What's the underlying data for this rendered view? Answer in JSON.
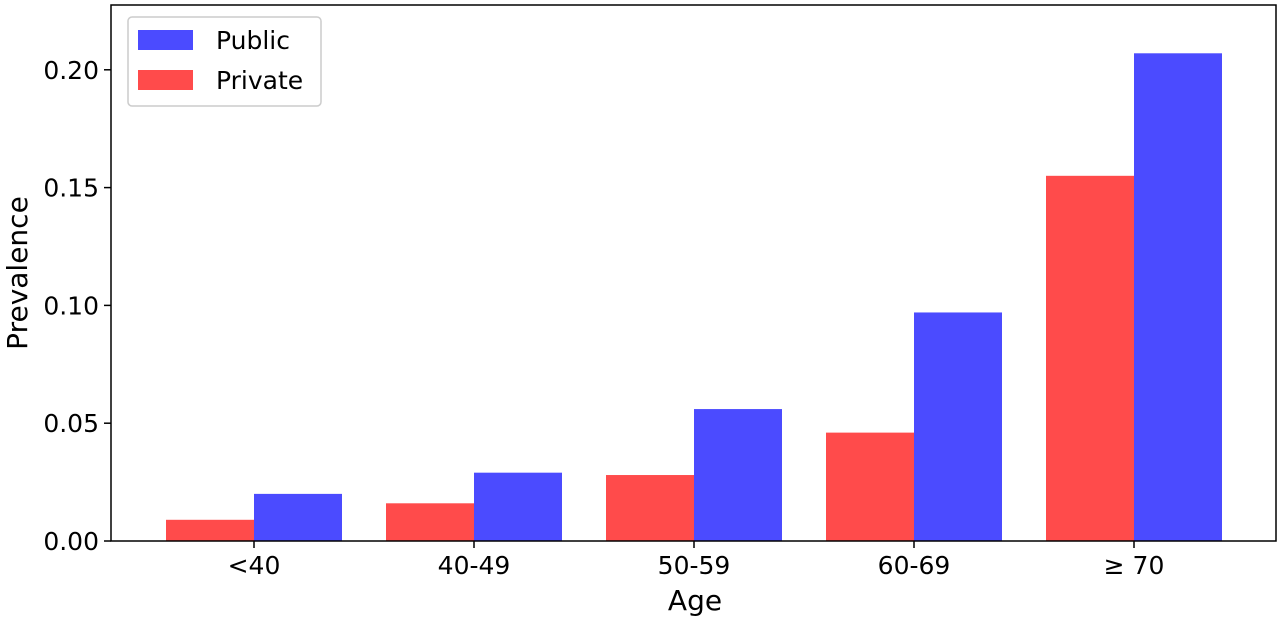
{
  "chart_data": {
    "type": "bar",
    "categories": [
      "<40",
      "40-49",
      "50-59",
      "60-69",
      "≥ 70"
    ],
    "series": [
      {
        "name": "Private",
        "color": "#ff4b4b",
        "values": [
          0.009,
          0.016,
          0.028,
          0.046,
          0.155
        ]
      },
      {
        "name": "Public",
        "color": "#4b4bff",
        "values": [
          0.02,
          0.029,
          0.056,
          0.097,
          0.207
        ]
      }
    ],
    "legend_order": [
      "Public",
      "Private"
    ],
    "legend_position": "top-left",
    "xlabel": "Age",
    "ylabel": "Prevalence",
    "ylim": [
      0,
      0.2275
    ],
    "yticks": [
      0.0,
      0.05,
      0.1,
      0.15,
      0.2
    ],
    "ytick_labels": [
      "0.00",
      "0.05",
      "0.10",
      "0.15",
      "0.20"
    ],
    "grid": false
  }
}
